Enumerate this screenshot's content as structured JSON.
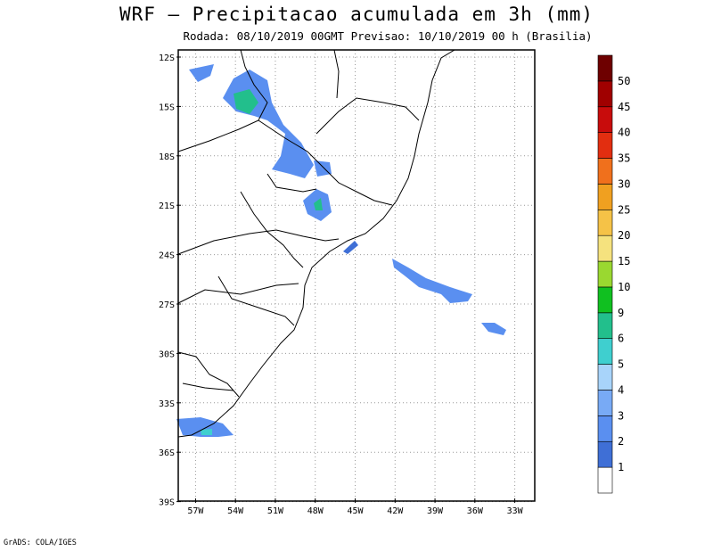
{
  "header": {
    "title": "WRF – Precipitacao acumulada em 3h (mm)",
    "subtitle": "Rodada: 08/10/2019 00GMT Previsao: 10/10/2019 00 h (Brasilia)"
  },
  "map": {
    "lat_labels": [
      "12S",
      "15S",
      "18S",
      "21S",
      "24S",
      "27S",
      "30S",
      "33S",
      "36S",
      "39S"
    ],
    "lon_labels": [
      "57W",
      "54W",
      "51W",
      "48W",
      "45W",
      "42W",
      "39W",
      "36W",
      "33W"
    ],
    "lat_range": [
      -39,
      -12
    ],
    "lon_range": [
      -57.5,
      -31.5
    ]
  },
  "legend": {
    "levels": [
      "1",
      "2",
      "3",
      "4",
      "5",
      "6",
      "9",
      "10",
      "15",
      "20",
      "25",
      "30",
      "35",
      "40",
      "45",
      "50"
    ],
    "colors": [
      "#ffffff",
      "#3f6fd6",
      "#5a8ff0",
      "#78aaf5",
      "#a8d4fa",
      "#3fcfcf",
      "#22bf8c",
      "#10c020",
      "#9ad830",
      "#f5e27e",
      "#f5c247",
      "#f0a020",
      "#f0701c",
      "#e22e10",
      "#c80c0c",
      "#a00000",
      "#6e0000"
    ]
  },
  "footer": {
    "credit": "GrADS: COLA/IGES"
  }
}
